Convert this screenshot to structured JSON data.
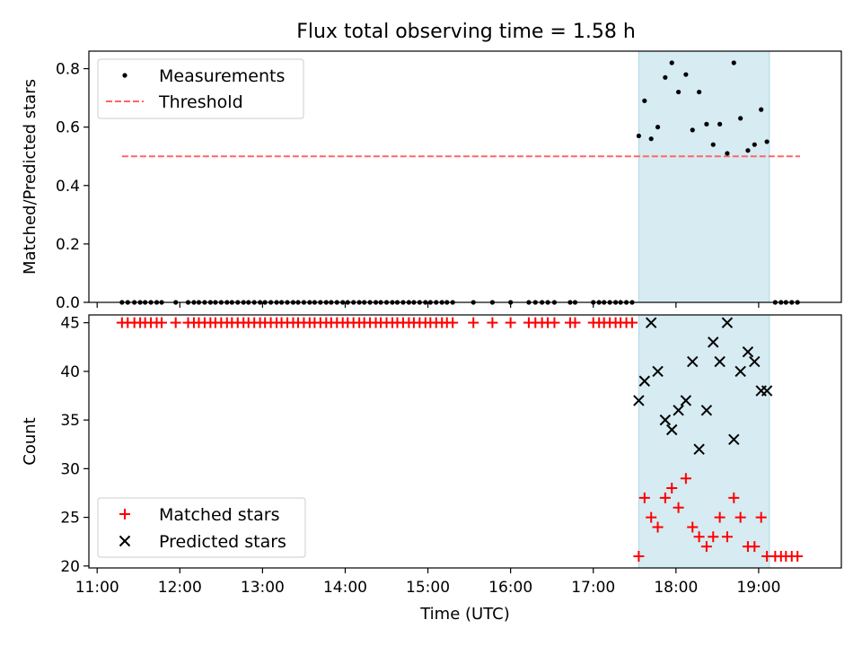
{
  "title": "Flux total observing time = 1.58 h",
  "colors": {
    "measurement": "#000000",
    "threshold": "#ff6666",
    "highlight": "#add8e6",
    "matched": "#ff0000",
    "predicted": "#000000"
  },
  "chart_data": [
    {
      "type": "scatter",
      "name": "ratio",
      "xlabel": "",
      "ylabel": "Matched/Predicted stars",
      "xlim": [
        10.9,
        20.0
      ],
      "ylim": [
        0,
        0.86
      ],
      "yticks": [
        0.0,
        0.2,
        0.4,
        0.6,
        0.8
      ],
      "ytick_labels": [
        "0.0",
        "0.2",
        "0.4",
        "0.6",
        "0.8"
      ],
      "legend": {
        "position": "top-left",
        "entries": [
          {
            "label": "Measurements",
            "marker": "dot"
          },
          {
            "label": "Threshold",
            "marker": "dashed-line"
          }
        ]
      },
      "highlight_span": [
        17.55,
        19.13
      ],
      "threshold": {
        "value": 0.5,
        "x_range": [
          11.3,
          19.5
        ]
      },
      "series": [
        {
          "name": "Measurements",
          "x": [
            11.3,
            11.37,
            11.45,
            11.52,
            11.58,
            11.65,
            11.72,
            11.78,
            11.95,
            12.1,
            12.17,
            12.23,
            12.3,
            12.37,
            12.43,
            12.5,
            12.57,
            12.63,
            12.7,
            12.77,
            12.83,
            12.9,
            12.97,
            13.03,
            13.1,
            13.17,
            13.23,
            13.3,
            13.37,
            13.43,
            13.5,
            13.57,
            13.63,
            13.7,
            13.77,
            13.83,
            13.9,
            13.97,
            14.03,
            14.1,
            14.17,
            14.23,
            14.3,
            14.37,
            14.43,
            14.5,
            14.57,
            14.63,
            14.7,
            14.77,
            14.83,
            14.9,
            14.97,
            15.03,
            15.1,
            15.17,
            15.23,
            15.3,
            15.55,
            15.78,
            16.0,
            16.22,
            16.3,
            16.38,
            16.45,
            16.53,
            16.72,
            16.78,
            17.0,
            17.07,
            17.13,
            17.2,
            17.27,
            17.33,
            17.4,
            17.47,
            17.55,
            17.62,
            17.7,
            17.78,
            17.87,
            17.95,
            18.03,
            18.12,
            18.2,
            18.28,
            18.37,
            18.45,
            18.53,
            18.62,
            18.7,
            18.78,
            18.87,
            18.95,
            19.03,
            19.1,
            19.2,
            19.27,
            19.33,
            19.4,
            19.47
          ],
          "y": [
            0,
            0,
            0,
            0,
            0,
            0,
            0,
            0,
            0,
            0,
            0,
            0,
            0,
            0,
            0,
            0,
            0,
            0,
            0,
            0,
            0,
            0,
            0,
            0,
            0,
            0,
            0,
            0,
            0,
            0,
            0,
            0,
            0,
            0,
            0,
            0,
            0,
            0,
            0,
            0,
            0,
            0,
            0,
            0,
            0,
            0,
            0,
            0,
            0,
            0,
            0,
            0,
            0,
            0,
            0,
            0,
            0,
            0,
            0,
            0,
            0,
            0,
            0,
            0,
            0,
            0,
            0,
            0,
            0,
            0,
            0,
            0,
            0,
            0,
            0,
            0,
            0.57,
            0.69,
            0.56,
            0.6,
            0.77,
            0.82,
            0.72,
            0.78,
            0.59,
            0.72,
            0.61,
            0.54,
            0.61,
            0.51,
            0.82,
            0.63,
            0.52,
            0.54,
            0.66,
            0.55,
            0,
            0,
            0,
            0,
            0
          ]
        }
      ]
    },
    {
      "type": "scatter",
      "name": "count",
      "xlabel": "Time (UTC)",
      "ylabel": "Count",
      "xlim": [
        10.9,
        20.0
      ],
      "ylim": [
        19.8,
        45.8
      ],
      "yticks": [
        20,
        25,
        30,
        35,
        40,
        45
      ],
      "ytick_labels": [
        "20",
        "25",
        "30",
        "35",
        "40",
        "45"
      ],
      "xticks": [
        11,
        12,
        13,
        14,
        15,
        16,
        17,
        18,
        19
      ],
      "xtick_labels": [
        "11:00",
        "12:00",
        "13:00",
        "14:00",
        "15:00",
        "16:00",
        "17:00",
        "18:00",
        "19:00"
      ],
      "legend": {
        "position": "bottom-left",
        "entries": [
          {
            "label": "Matched stars",
            "marker": "plus"
          },
          {
            "label": "Predicted stars",
            "marker": "x"
          }
        ]
      },
      "highlight_span": [
        17.55,
        19.13
      ],
      "series": [
        {
          "name": "Matched stars",
          "x": [
            11.3,
            11.37,
            11.45,
            11.52,
            11.58,
            11.65,
            11.72,
            11.78,
            11.95,
            12.1,
            12.17,
            12.23,
            12.3,
            12.37,
            12.43,
            12.5,
            12.57,
            12.63,
            12.7,
            12.77,
            12.83,
            12.9,
            12.97,
            13.03,
            13.1,
            13.17,
            13.23,
            13.3,
            13.37,
            13.43,
            13.5,
            13.57,
            13.63,
            13.7,
            13.77,
            13.83,
            13.9,
            13.97,
            14.03,
            14.1,
            14.17,
            14.23,
            14.3,
            14.37,
            14.43,
            14.5,
            14.57,
            14.63,
            14.7,
            14.77,
            14.83,
            14.9,
            14.97,
            15.03,
            15.1,
            15.17,
            15.23,
            15.3,
            15.55,
            15.78,
            16.0,
            16.22,
            16.3,
            16.38,
            16.45,
            16.53,
            16.72,
            16.78,
            17.0,
            17.07,
            17.13,
            17.2,
            17.27,
            17.33,
            17.4,
            17.47,
            17.55,
            17.62,
            17.7,
            17.78,
            17.87,
            17.95,
            18.03,
            18.12,
            18.2,
            18.28,
            18.37,
            18.45,
            18.53,
            18.62,
            18.7,
            18.78,
            18.87,
            18.95,
            19.03,
            19.1,
            19.2,
            19.27,
            19.33,
            19.4,
            19.47
          ],
          "y": [
            45,
            45,
            45,
            45,
            45,
            45,
            45,
            45,
            45,
            45,
            45,
            45,
            45,
            45,
            45,
            45,
            45,
            45,
            45,
            45,
            45,
            45,
            45,
            45,
            45,
            45,
            45,
            45,
            45,
            45,
            45,
            45,
            45,
            45,
            45,
            45,
            45,
            45,
            45,
            45,
            45,
            45,
            45,
            45,
            45,
            45,
            45,
            45,
            45,
            45,
            45,
            45,
            45,
            45,
            45,
            45,
            45,
            45,
            45,
            45,
            45,
            45,
            45,
            45,
            45,
            45,
            45,
            45,
            45,
            45,
            45,
            45,
            45,
            45,
            45,
            45,
            21,
            27,
            25,
            24,
            27,
            28,
            26,
            29,
            24,
            23,
            22,
            23,
            25,
            23,
            27,
            25,
            22,
            22,
            25,
            21,
            21,
            21,
            21,
            21,
            21
          ]
        },
        {
          "name": "Predicted stars",
          "x": [
            17.55,
            17.62,
            17.7,
            17.78,
            17.87,
            17.95,
            18.03,
            18.12,
            18.2,
            18.28,
            18.37,
            18.45,
            18.53,
            18.62,
            18.7,
            18.78,
            18.87,
            18.95,
            19.03,
            19.1
          ],
          "y": [
            37,
            39,
            45,
            40,
            35,
            34,
            36,
            37,
            41,
            32,
            36,
            43,
            41,
            45,
            33,
            40,
            42,
            41,
            38,
            38
          ]
        }
      ]
    }
  ]
}
